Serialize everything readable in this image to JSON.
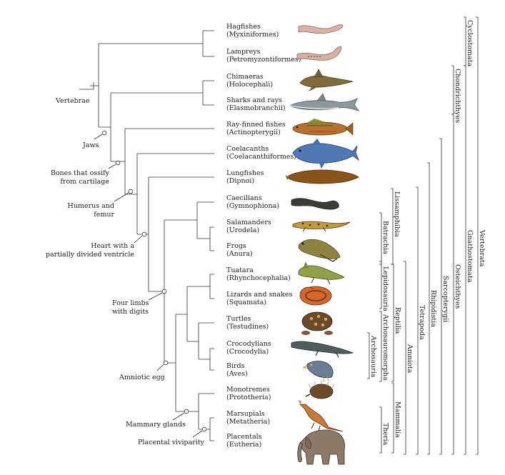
{
  "taxa": [
    {
      "common": "Hagfishes",
      "sci": "(Myxiniformes)"
    },
    {
      "common": "Lampreys",
      "sci": "(Petromyzontiformes)"
    },
    {
      "common": "Chimaeras",
      "sci": "(Holocephali)"
    },
    {
      "common": "Sharks and rays",
      "sci": "(Elasmobranchii)"
    },
    {
      "common": "Ray-finned fishes",
      "sci": "(Actinopterygii)"
    },
    {
      "common": "Coelacanths",
      "sci": "(Coelacanthiformes)"
    },
    {
      "common": "Lungfishes",
      "sci": "(Dipnoi)"
    },
    {
      "common": "Caecilians",
      "sci": "(Gymnophiona)"
    },
    {
      "common": "Salamanders",
      "sci": "(Urodela)"
    },
    {
      "common": "Frogs",
      "sci": "(Anura)"
    },
    {
      "common": "Tuatara",
      "sci": "(Rhynchocephalia)"
    },
    {
      "common": "Lizards and snakes",
      "sci": "(Squamata)"
    },
    {
      "common": "Turtles",
      "sci": "(Testudines)"
    },
    {
      "common": "Crocodylians",
      "sci": "(Crocodylia)"
    },
    {
      "common": "Birds",
      "sci": "(Aves)"
    },
    {
      "common": "Monotremes",
      "sci": "(Prototheria)"
    },
    {
      "common": "Marsupials",
      "sci": "(Metatheria)"
    },
    {
      "common": "Placentals",
      "sci": "(Eutheria)"
    }
  ],
  "characters": [
    {
      "lines": [
        "Vertebrae"
      ]
    },
    {
      "lines": [
        "Jaws"
      ]
    },
    {
      "lines": [
        "Bones that ossify",
        "from cartilage"
      ]
    },
    {
      "lines": [
        "Humerus and",
        "femur"
      ]
    },
    {
      "lines": [
        "Heart with a",
        "partially divided ventricle"
      ]
    },
    {
      "lines": [
        "Four limbs",
        "with digits"
      ]
    },
    {
      "lines": [
        "Amniotic egg"
      ]
    },
    {
      "lines": [
        "Mammary glands"
      ]
    },
    {
      "lines": [
        "Placental viviparity"
      ]
    }
  ],
  "clades": [
    "Lissamphibia",
    "Batrachia",
    "Lepidosauria",
    "Archosauria",
    "Archosauromorpha",
    "Reptilia",
    "Mammalia",
    "Theria",
    "Amniota",
    "Tetrapoda",
    "Rhipidistia",
    "Sarcopterygii",
    "Osteichthyes",
    "Chondrichthyes",
    "Gnathostomata",
    "Cyclostomata",
    "Vertebrata"
  ],
  "animals": [
    {
      "icon": "hagfish-icon",
      "color": "#d9b3a6"
    },
    {
      "icon": "lamprey-icon",
      "color": "#d5b0a5"
    },
    {
      "icon": "chimaera-icon",
      "color": "#7f6e3c"
    },
    {
      "icon": "shark-icon",
      "color": "#8d989d"
    },
    {
      "icon": "ray-finned-fish-icon",
      "color": "#b6722c"
    },
    {
      "icon": "coelacanth-icon",
      "color": "#4f78b5"
    },
    {
      "icon": "lungfish-icon",
      "color": "#8a5418"
    },
    {
      "icon": "caecilian-icon",
      "color": "#3c3c36"
    },
    {
      "icon": "salamander-icon",
      "color": "#c49b3a"
    },
    {
      "icon": "frog-icon",
      "color": "#8d8442"
    },
    {
      "icon": "tuatara-icon",
      "color": "#8fa048"
    },
    {
      "icon": "snake-icon",
      "color": "#d2682e"
    },
    {
      "icon": "turtle-icon",
      "color": "#6b4a2a"
    },
    {
      "icon": "crocodile-icon",
      "color": "#4e5e5d"
    },
    {
      "icon": "bird-icon",
      "color": "#6b7d92"
    },
    {
      "icon": "echidna-icon",
      "color": "#6e4a2a"
    },
    {
      "icon": "kangaroo-icon",
      "color": "#c87a3a"
    },
    {
      "icon": "elephant-icon",
      "color": "#8c7a68"
    }
  ]
}
